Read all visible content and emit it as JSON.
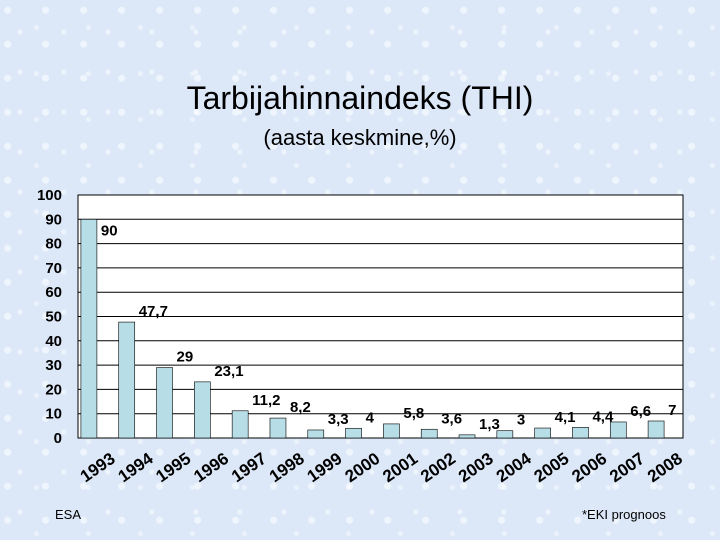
{
  "chart_data": {
    "type": "bar",
    "title": "Tarbijahinnaindeks (THI)",
    "subtitle": "(aasta keskmine,%)",
    "categories": [
      "1993",
      "1994",
      "1995",
      "1996",
      "1997",
      "1998",
      "1999",
      "2000",
      "2001",
      "2002",
      "2003",
      "2004",
      "2005",
      "2006",
      "2007",
      "2008"
    ],
    "values": [
      90,
      47.7,
      29,
      23.1,
      11.2,
      8.2,
      3.3,
      4,
      5.8,
      3.6,
      1.3,
      3,
      4.1,
      4.4,
      6.6,
      7
    ],
    "data_labels": [
      "90",
      "47,7",
      "29",
      "23,1",
      "11,2",
      "8,2",
      "3,3",
      "4",
      "5,8",
      "3,6",
      "1,3",
      "3",
      "4,1",
      "4,4",
      "6,6",
      "7"
    ],
    "ylim": [
      0,
      100
    ],
    "yticks": [
      "0",
      "10",
      "20",
      "30",
      "40",
      "50",
      "60",
      "70",
      "80",
      "90",
      "100"
    ],
    "grid": true,
    "colors": {
      "bar": "#b7dde6",
      "bar_edge": "#000000",
      "plot_bg": "#ffffff"
    }
  },
  "footer": {
    "left": "ESA",
    "right": "*EKI prognoos"
  }
}
